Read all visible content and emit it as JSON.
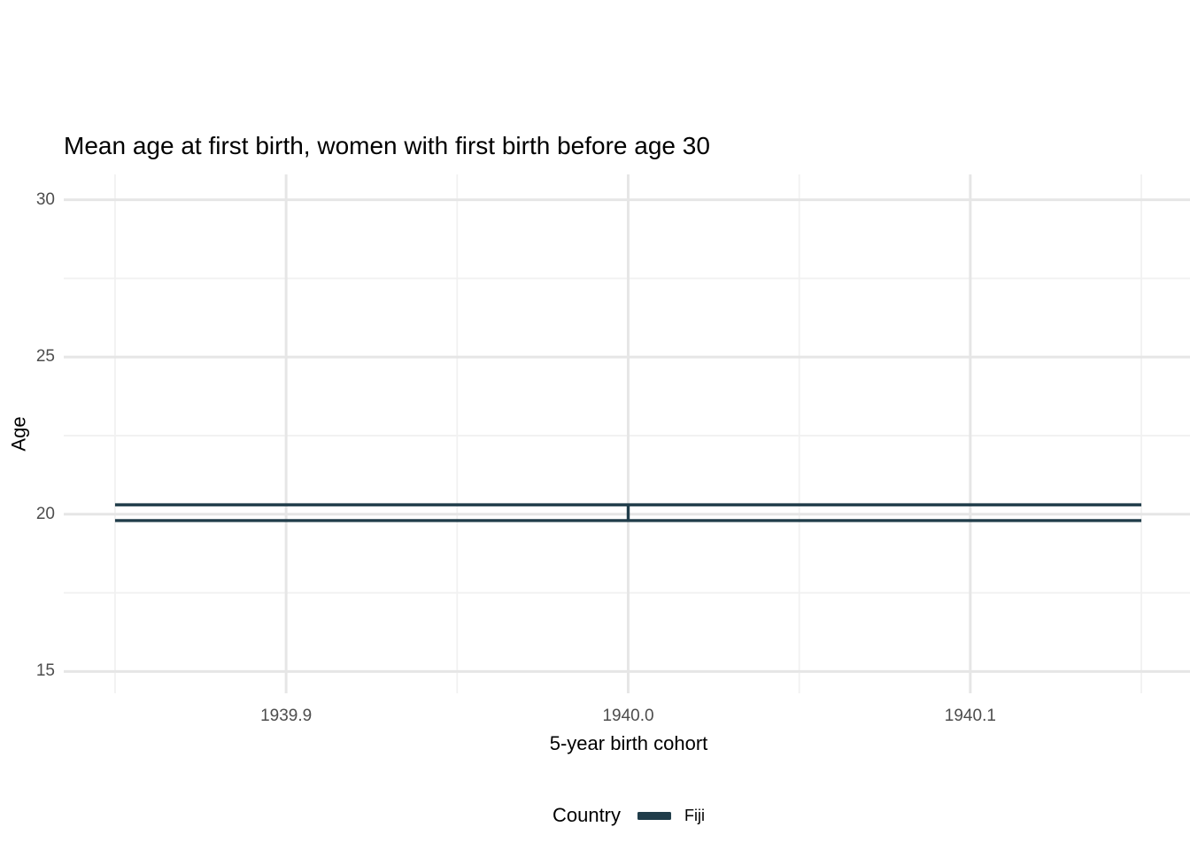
{
  "chart_data": {
    "type": "errorbar",
    "title": "Mean age at first birth, women with first birth before age 30",
    "xlabel": "5-year birth cohort",
    "ylabel": "Age",
    "x_ticks": [
      {
        "value": 1939.9,
        "label": "1939.9"
      },
      {
        "value": 1940.0,
        "label": "1940.0"
      },
      {
        "value": 1940.1,
        "label": "1940.1"
      }
    ],
    "x_minor_ticks": [
      1939.85,
      1939.95,
      1940.05,
      1940.15
    ],
    "xlim": [
      1939.835,
      1940.165
    ],
    "y_ticks": [
      {
        "value": 15,
        "label": "15"
      },
      {
        "value": 20,
        "label": "20"
      },
      {
        "value": 25,
        "label": "25"
      },
      {
        "value": 30,
        "label": "30"
      }
    ],
    "y_minor_ticks": [
      17.5,
      22.5,
      27.5
    ],
    "ylim": [
      14.25,
      30.75
    ],
    "grid": true,
    "legend": {
      "position": "bottom",
      "title": "Country",
      "entries": [
        {
          "label": "Fiji",
          "color": "#203d4a"
        }
      ]
    },
    "series": [
      {
        "name": "Fiji",
        "color": "#203d4a",
        "points": [
          {
            "x": 1940,
            "y": 20.05,
            "ymin": 19.8,
            "ymax": 20.3,
            "cap_halfwidth": 0.15
          }
        ]
      }
    ],
    "colors": {
      "background": "#ffffff",
      "grid_major": "#e6e6e6",
      "grid_minor": "#f1f1f1",
      "tick_label": "#4d4d4d",
      "text": "#000000"
    }
  }
}
